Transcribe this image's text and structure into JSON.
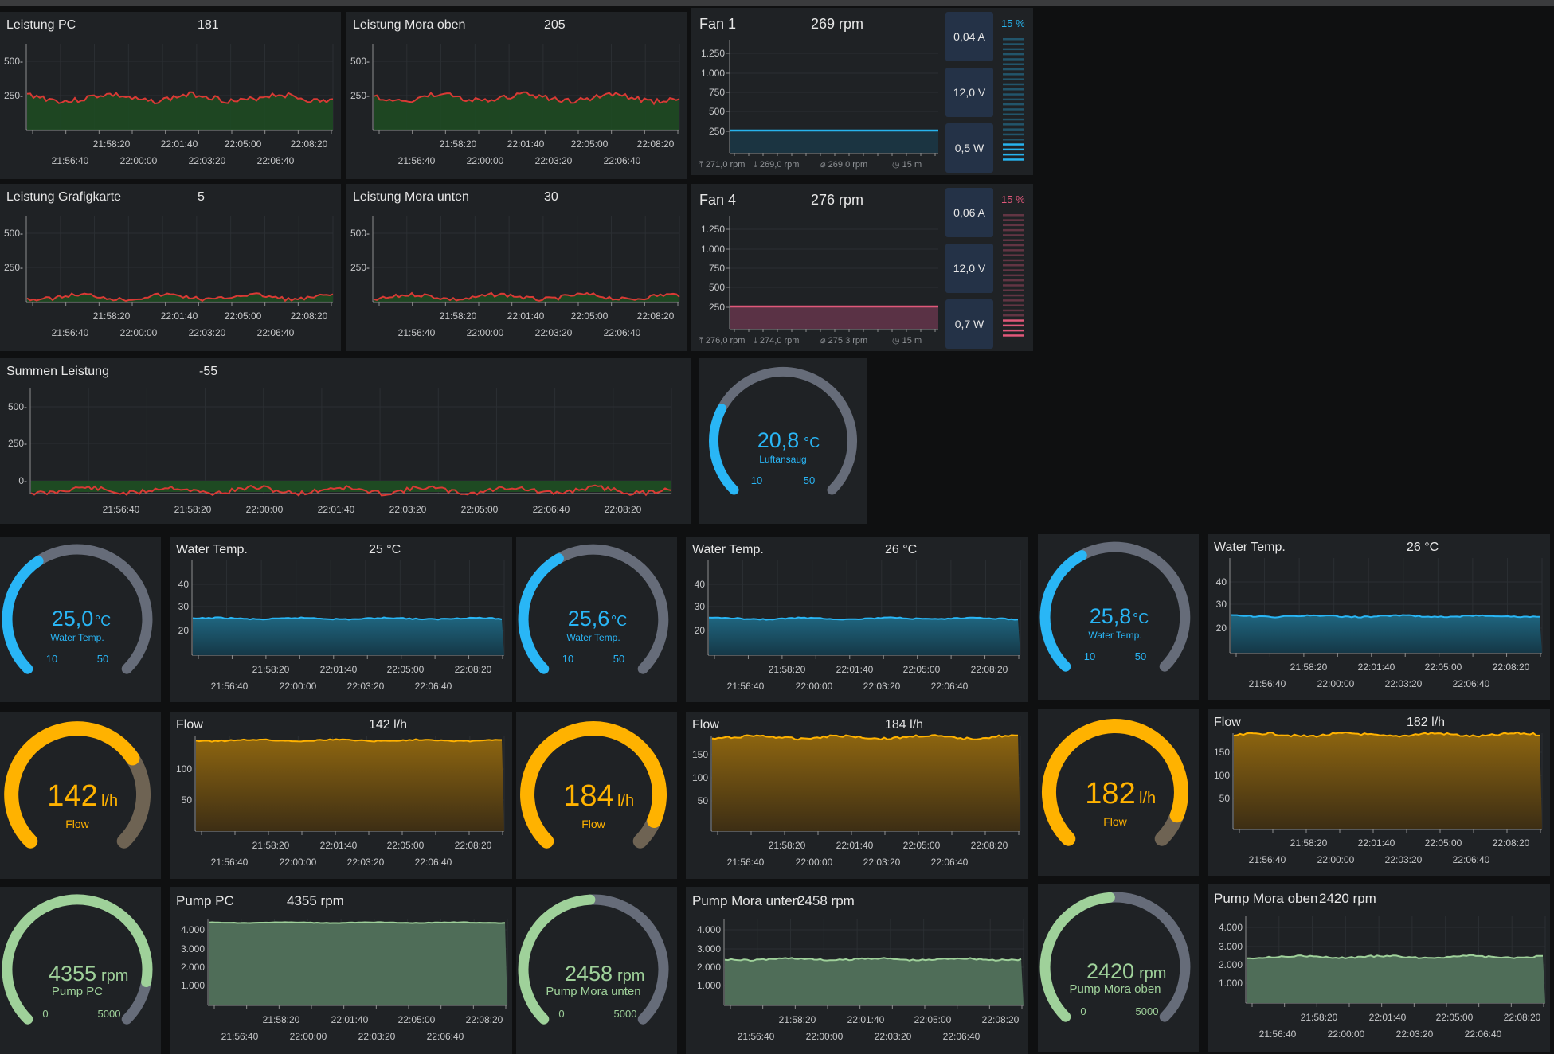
{
  "colors": {
    "power_line": "#d93a35",
    "power_fill": "#1e4a22",
    "fan1": "#27b4ee",
    "fan4": "#e0587a",
    "temp": "#29b6f6",
    "temp_fill": "#1d5870",
    "flow": "#ffb200",
    "flow_fill": "#8a5e0a",
    "pump": "#9fd19a",
    "pump_fill": "#4f6d58",
    "gauge_track": "#666c79"
  },
  "time_ticks_top": [
    "21:58:20",
    "22:01:40",
    "22:05:00",
    "22:08:20"
  ],
  "time_ticks_bottom": [
    "21:56:40",
    "22:00:00",
    "22:03:20",
    "22:06:40"
  ],
  "power_panels": [
    {
      "title": "Leistung PC",
      "value": "181",
      "y_ticks": [
        "500-",
        "250-"
      ]
    },
    {
      "title": "Leistung Mora oben",
      "value": "205",
      "y_ticks": [
        "500-",
        "250-"
      ]
    },
    {
      "title": "Leistung Grafigkarte",
      "value": "5",
      "y_ticks": [
        "500-",
        "250-"
      ]
    },
    {
      "title": "Leistung Mora unten",
      "value": "30",
      "y_ticks": [
        "500-",
        "250-"
      ]
    }
  ],
  "sum_panel": {
    "title": "Summen Leistung",
    "value": "-55",
    "y_ticks": [
      "500-",
      "250-",
      "0-"
    ],
    "x_ticks": [
      "21:56:40",
      "21:58:20",
      "22:00:00",
      "22:01:40",
      "22:03:20",
      "22:05:00",
      "22:06:40",
      "22:08:20"
    ]
  },
  "fans": [
    {
      "title": "Fan 1",
      "rpm": "269 rpm",
      "current": "0,04 A",
      "voltage": "12,0 V",
      "power": "0,5 W",
      "percent": "15 %",
      "y_ticks": [
        "1.250",
        "1.000",
        "750",
        "500",
        "250"
      ],
      "stats": [
        "⤒ 271,0 rpm",
        "⤓ 269,0 rpm",
        "⌀ 269,0 rpm",
        "◷ 15 m"
      ]
    },
    {
      "title": "Fan 4",
      "rpm": "276 rpm",
      "current": "0,06 A",
      "voltage": "12,0 V",
      "power": "0,7 W",
      "percent": "15 %",
      "y_ticks": [
        "1.250",
        "1.000",
        "750",
        "500",
        "250"
      ],
      "stats": [
        "⤒ 276,0 rpm",
        "⤓ 274,0 rpm",
        "⌀ 275,3 rpm",
        "◷ 15 m"
      ]
    }
  ],
  "air_gauge": {
    "value": "20,8",
    "unit": "°C",
    "label": "Luftansaug",
    "min": "10",
    "max": "50",
    "fraction": 0.27
  },
  "temp_gauges": [
    {
      "value": "25,0",
      "unit": "°C",
      "label": "Water Temp.",
      "min": "10",
      "max": "50",
      "fraction": 0.375
    },
    {
      "value": "25,6",
      "unit": "°C",
      "label": "Water Temp.",
      "min": "10",
      "max": "50",
      "fraction": 0.39
    },
    {
      "value": "25,8",
      "unit": "°C",
      "label": "Water Temp.",
      "min": "10",
      "max": "50",
      "fraction": 0.395
    }
  ],
  "temp_charts": [
    {
      "title": "Water Temp.",
      "value": "25 °C",
      "y_ticks": [
        "40",
        "30",
        "20"
      ]
    },
    {
      "title": "Water Temp.",
      "value": "26 °C",
      "y_ticks": [
        "40",
        "30",
        "20"
      ]
    },
    {
      "title": "Water Temp.",
      "value": "26 °C",
      "y_ticks": [
        "40",
        "30",
        "20"
      ]
    }
  ],
  "flow_gauges": [
    {
      "value": "142",
      "unit": "l/h",
      "label": "Flow",
      "fraction": 0.71
    },
    {
      "value": "184",
      "unit": "l/h",
      "label": "Flow",
      "fraction": 0.92
    },
    {
      "value": "182",
      "unit": "l/h",
      "label": "Flow",
      "fraction": 0.91
    }
  ],
  "flow_charts": [
    {
      "title": "Flow",
      "value": "142 l/h",
      "y_ticks": [
        "100",
        "50"
      ]
    },
    {
      "title": "Flow",
      "value": "184 l/h",
      "y_ticks": [
        "150",
        "100",
        "50"
      ]
    },
    {
      "title": "Flow",
      "value": "182 l/h",
      "y_ticks": [
        "150",
        "100",
        "50"
      ]
    }
  ],
  "pump_gauges": [
    {
      "value": "4355",
      "unit": "rpm",
      "label": "Pump PC",
      "min": "0",
      "max": "5000",
      "fraction": 0.871
    },
    {
      "value": "2458",
      "unit": "rpm",
      "label": "Pump Mora unten",
      "min": "0",
      "max": "5000",
      "fraction": 0.49
    },
    {
      "value": "2420",
      "unit": "rpm",
      "label": "Pump Mora oben",
      "min": "0",
      "max": "5000",
      "fraction": 0.484
    }
  ],
  "pump_charts": [
    {
      "title": "Pump PC",
      "value": "4355 rpm",
      "y_ticks": [
        "4.000",
        "3.000",
        "2.000",
        "1.000"
      ]
    },
    {
      "title": "Pump Mora unten",
      "value": "2458 rpm",
      "y_ticks": [
        "4.000",
        "3.000",
        "2.000",
        "1.000"
      ]
    },
    {
      "title": "Pump Mora oben",
      "value": "2420 rpm",
      "y_ticks": [
        "4.000",
        "3.000",
        "2.000",
        "1.000"
      ]
    }
  ]
}
